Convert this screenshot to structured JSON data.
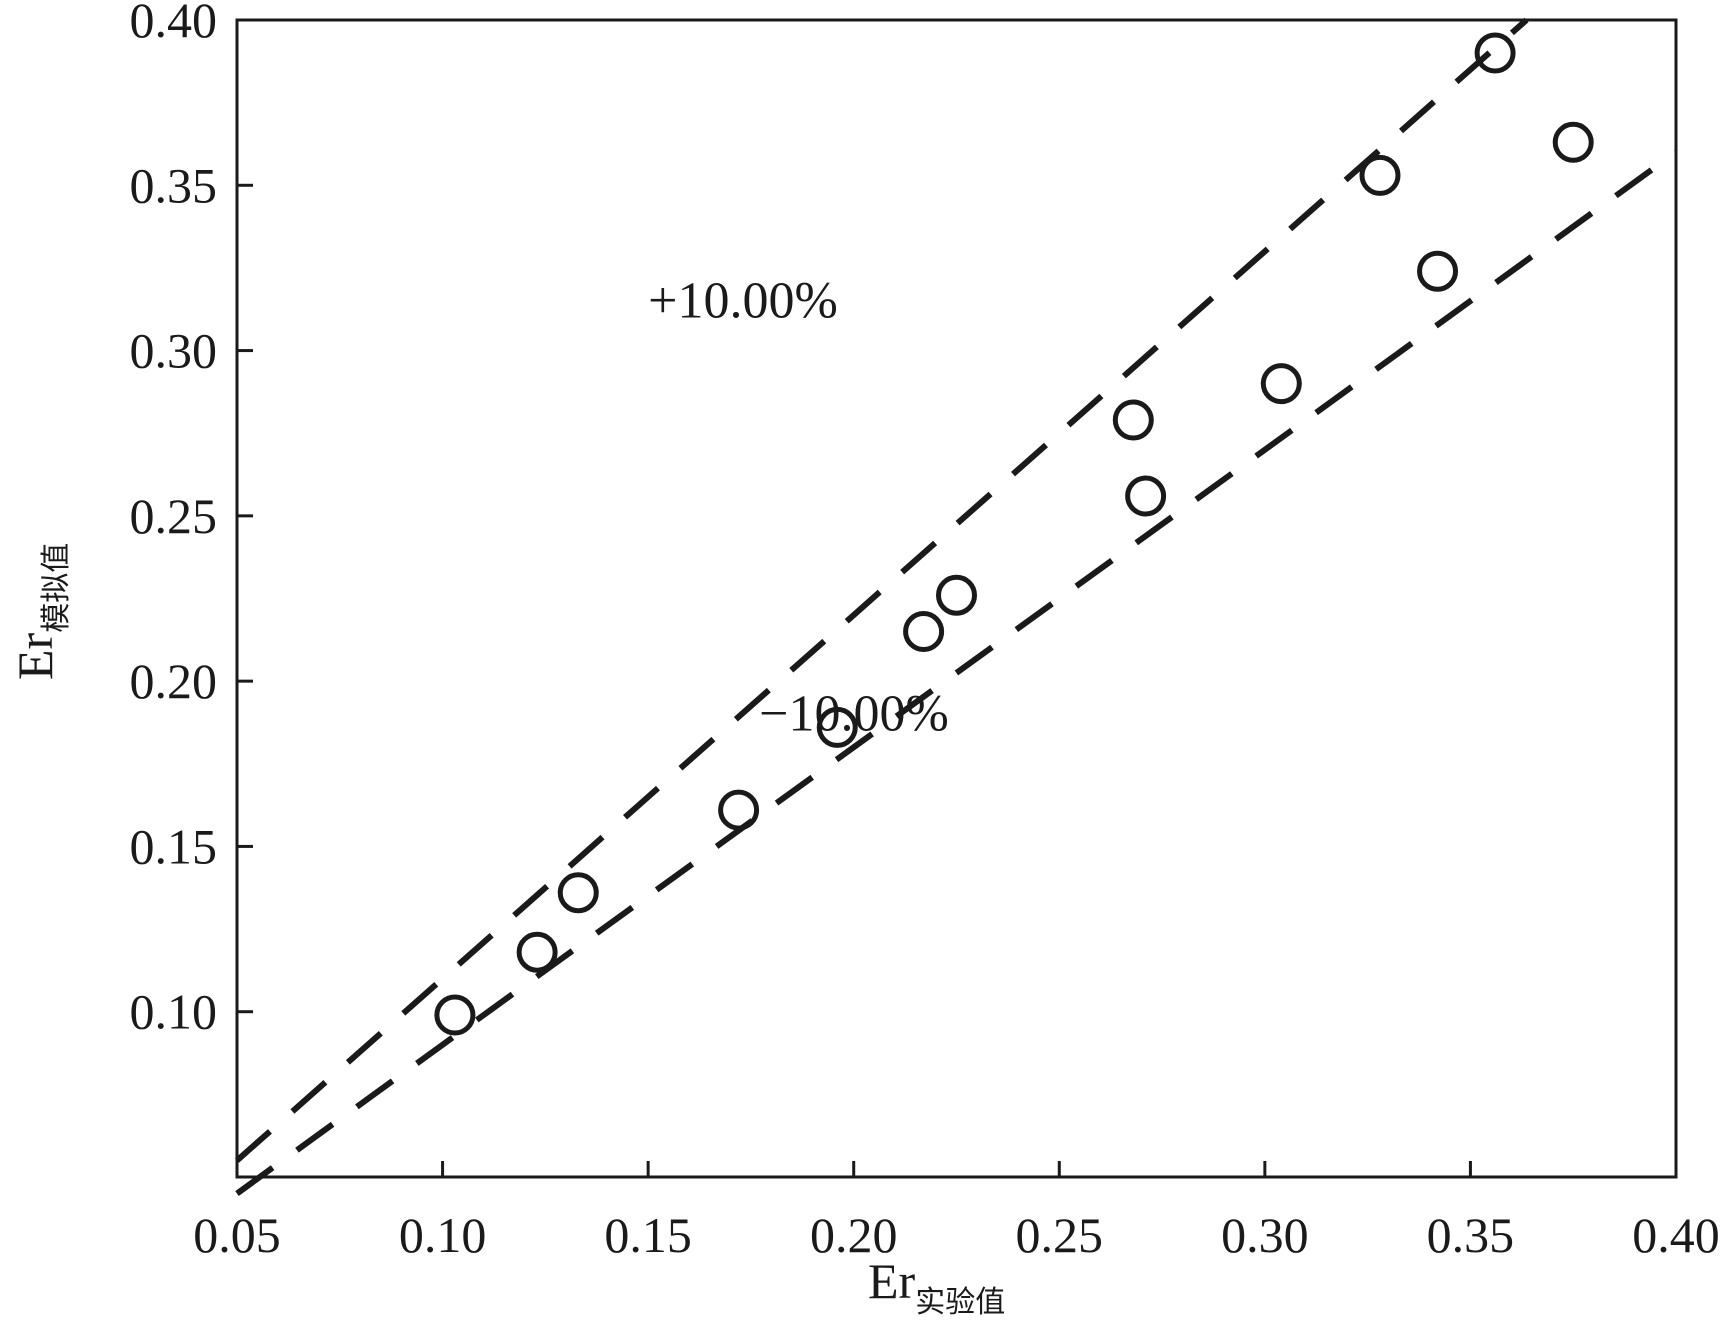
{
  "chart_data": {
    "type": "scatter",
    "title": "",
    "xlabel": {
      "main": "Er",
      "sub": "实验值"
    },
    "ylabel": {
      "main": "Er",
      "sub": "模拟值"
    },
    "xlim": [
      0.05,
      0.4
    ],
    "ylim": [
      0.05,
      0.4
    ],
    "xticks": [
      "0.05",
      "0.10",
      "0.15",
      "0.20",
      "0.25",
      "0.30",
      "0.35",
      "0.40"
    ],
    "yticks": [
      "0.10",
      "0.15",
      "0.20",
      "0.25",
      "0.30",
      "0.35",
      "0.40"
    ],
    "grid": false,
    "series": [
      {
        "marker": "open-circle",
        "x": [
          0.103,
          0.123,
          0.133,
          0.172,
          0.196,
          0.217,
          0.225,
          0.268,
          0.271,
          0.304,
          0.328,
          0.342,
          0.356,
          0.375
        ],
        "y": [
          0.099,
          0.118,
          0.136,
          0.161,
          0.186,
          0.215,
          0.226,
          0.279,
          0.256,
          0.29,
          0.353,
          0.324,
          0.39,
          0.363
        ]
      }
    ],
    "reference_lines": [
      {
        "label": "+10.00%",
        "slope": 1.1,
        "style": "dashed"
      },
      {
        "label": "−10.00%",
        "slope": 0.9,
        "style": "dashed"
      }
    ],
    "annotations": [
      {
        "text": "+10.00%",
        "x": 0.15,
        "y": 0.31
      },
      {
        "text": "−10.00%",
        "x": 0.177,
        "y": 0.185
      }
    ]
  }
}
